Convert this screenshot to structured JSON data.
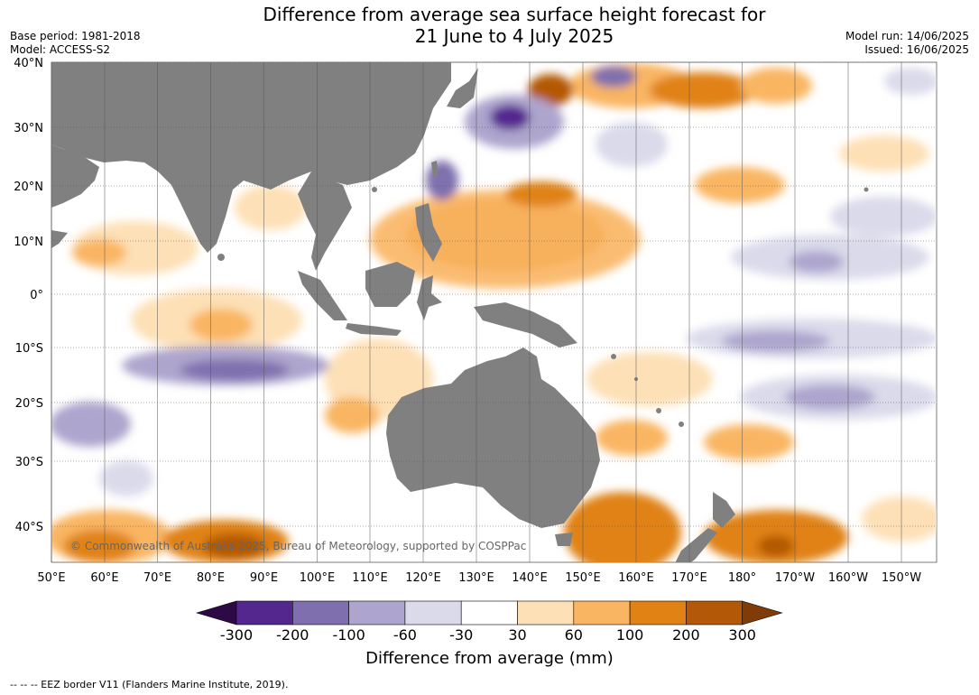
{
  "title_line1": "Difference from average sea surface height forecast for",
  "title_line2": "21 June to 4 July 2025",
  "base_period": "Base period: 1981-2018",
  "model": "Model: ACCESS-S2",
  "model_run": "Model run: 14/06/2025",
  "issued": "Issued: 16/06/2025",
  "copyright": "© Commonwealth of Australia 2025, Bureau of Meteorology, supported by COSPPac",
  "lat_labels": [
    "40°N",
    "30°N",
    "20°N",
    "10°N",
    "0°",
    "10°S",
    "20°S",
    "30°S",
    "40°S"
  ],
  "lon_labels": [
    "50°E",
    "60°E",
    "70°E",
    "80°E",
    "90°E",
    "100°E",
    "110°E",
    "120°E",
    "130°E",
    "140°E",
    "150°E",
    "160°E",
    "170°E",
    "180°",
    "170°W",
    "160°W",
    "150°W"
  ],
  "colorbar": {
    "label": "Difference from average (mm)",
    "ticks": [
      "-300",
      "-200",
      "-100",
      "-60",
      "-30",
      "30",
      "60",
      "100",
      "200",
      "300"
    ],
    "colors": {
      "under": "#2d0a45",
      "bins": [
        "#54278f",
        "#7f6fae",
        "#ada5cd",
        "#dadaeb",
        "#ffffff",
        "#fde0b6",
        "#f9b562",
        "#e08214",
        "#b35806"
      ],
      "over": "#7f3b08"
    }
  },
  "colors": {
    "land": "#808080",
    "ocean": "#ffffff"
  },
  "footer": "--  --  -- EEZ border V11 (Flanders Marine Institute, 2019)."
}
